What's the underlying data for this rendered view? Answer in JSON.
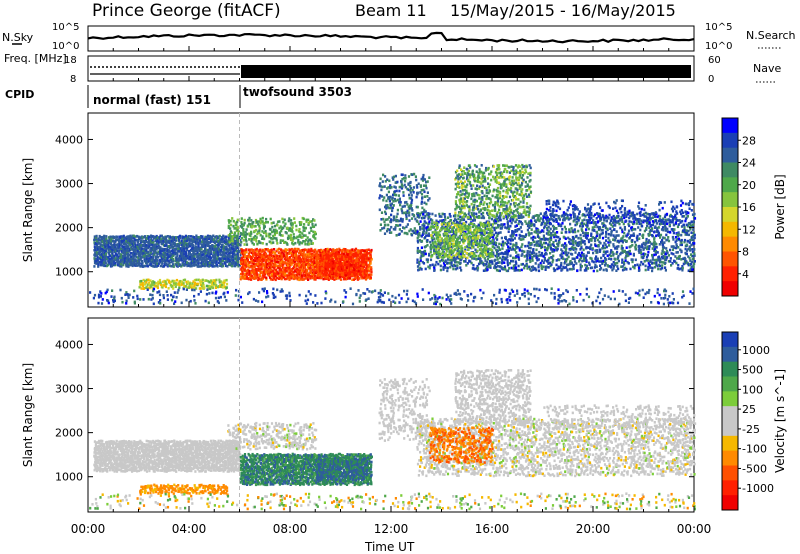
{
  "header": {
    "station": "Prince George (fitACF)",
    "beam": "Beam 11",
    "date_range": "15/May/2015 - 16/May/2015"
  },
  "summary_panel": {
    "left_labels": [
      "N.Sky",
      "Freq. [MHz]",
      "CPID"
    ],
    "right_labels": [
      "N.Search",
      "Nave"
    ],
    "nsky_ticks": [
      "10^5",
      "10^0"
    ],
    "nsearch_ticks": [
      "10^5",
      "10^0"
    ],
    "freq_ticks": [
      "18",
      "8"
    ],
    "nave_ticks": [
      "60",
      "0"
    ],
    "cpid_segments": [
      {
        "label": "normal (fast) 151",
        "start_hour": 0,
        "end_hour": 6
      },
      {
        "label": "twofsound 3503",
        "start_hour": 6,
        "end_hour": 24
      }
    ]
  },
  "chart_data": [
    {
      "type": "heatmap",
      "quantity": "Power",
      "ylabel": "Slant Range [km]",
      "yticks": [
        1000,
        2000,
        3000,
        4000
      ],
      "ylim": [
        200,
        4600
      ],
      "xlim_hours": [
        0,
        24
      ],
      "colorbar_label": "Power [dB]",
      "colorbar_ticks": [
        "4",
        "8",
        "12",
        "16",
        "20",
        "24",
        "28"
      ],
      "colorbar_colors": [
        "#0000ff",
        "#1a3fb5",
        "#2f5d9c",
        "#3f8a63",
        "#4fa84a",
        "#86c43d",
        "#d4d62c",
        "#f5b800",
        "#ff8a00",
        "#ff5400",
        "#ff2000",
        "#f00000"
      ]
    },
    {
      "type": "heatmap",
      "quantity": "Velocity",
      "ylabel": "Slant Range [km]",
      "yticks": [
        1000,
        2000,
        3000,
        4000
      ],
      "ylim": [
        200,
        4600
      ],
      "xlim_hours": [
        0,
        24
      ],
      "colorbar_label": "Velocity [m s^-1]",
      "colorbar_ticks": [
        "1000",
        "500",
        "100",
        "25",
        "-25",
        "-100",
        "-500",
        "-1000"
      ],
      "colorbar_colors": [
        "#1a3fb5",
        "#2f5d9c",
        "#2e8b57",
        "#4fa84a",
        "#7ccd3a",
        "#c8c8c8",
        "#c8c8c8",
        "#f5b800",
        "#ff8a00",
        "#ff5000",
        "#ff2000",
        "#f00000"
      ]
    }
  ],
  "xaxis": {
    "ticks": [
      "00:00",
      "04:00",
      "08:00",
      "12:00",
      "16:00",
      "20:00",
      "00:00"
    ],
    "label": "Time UT"
  }
}
